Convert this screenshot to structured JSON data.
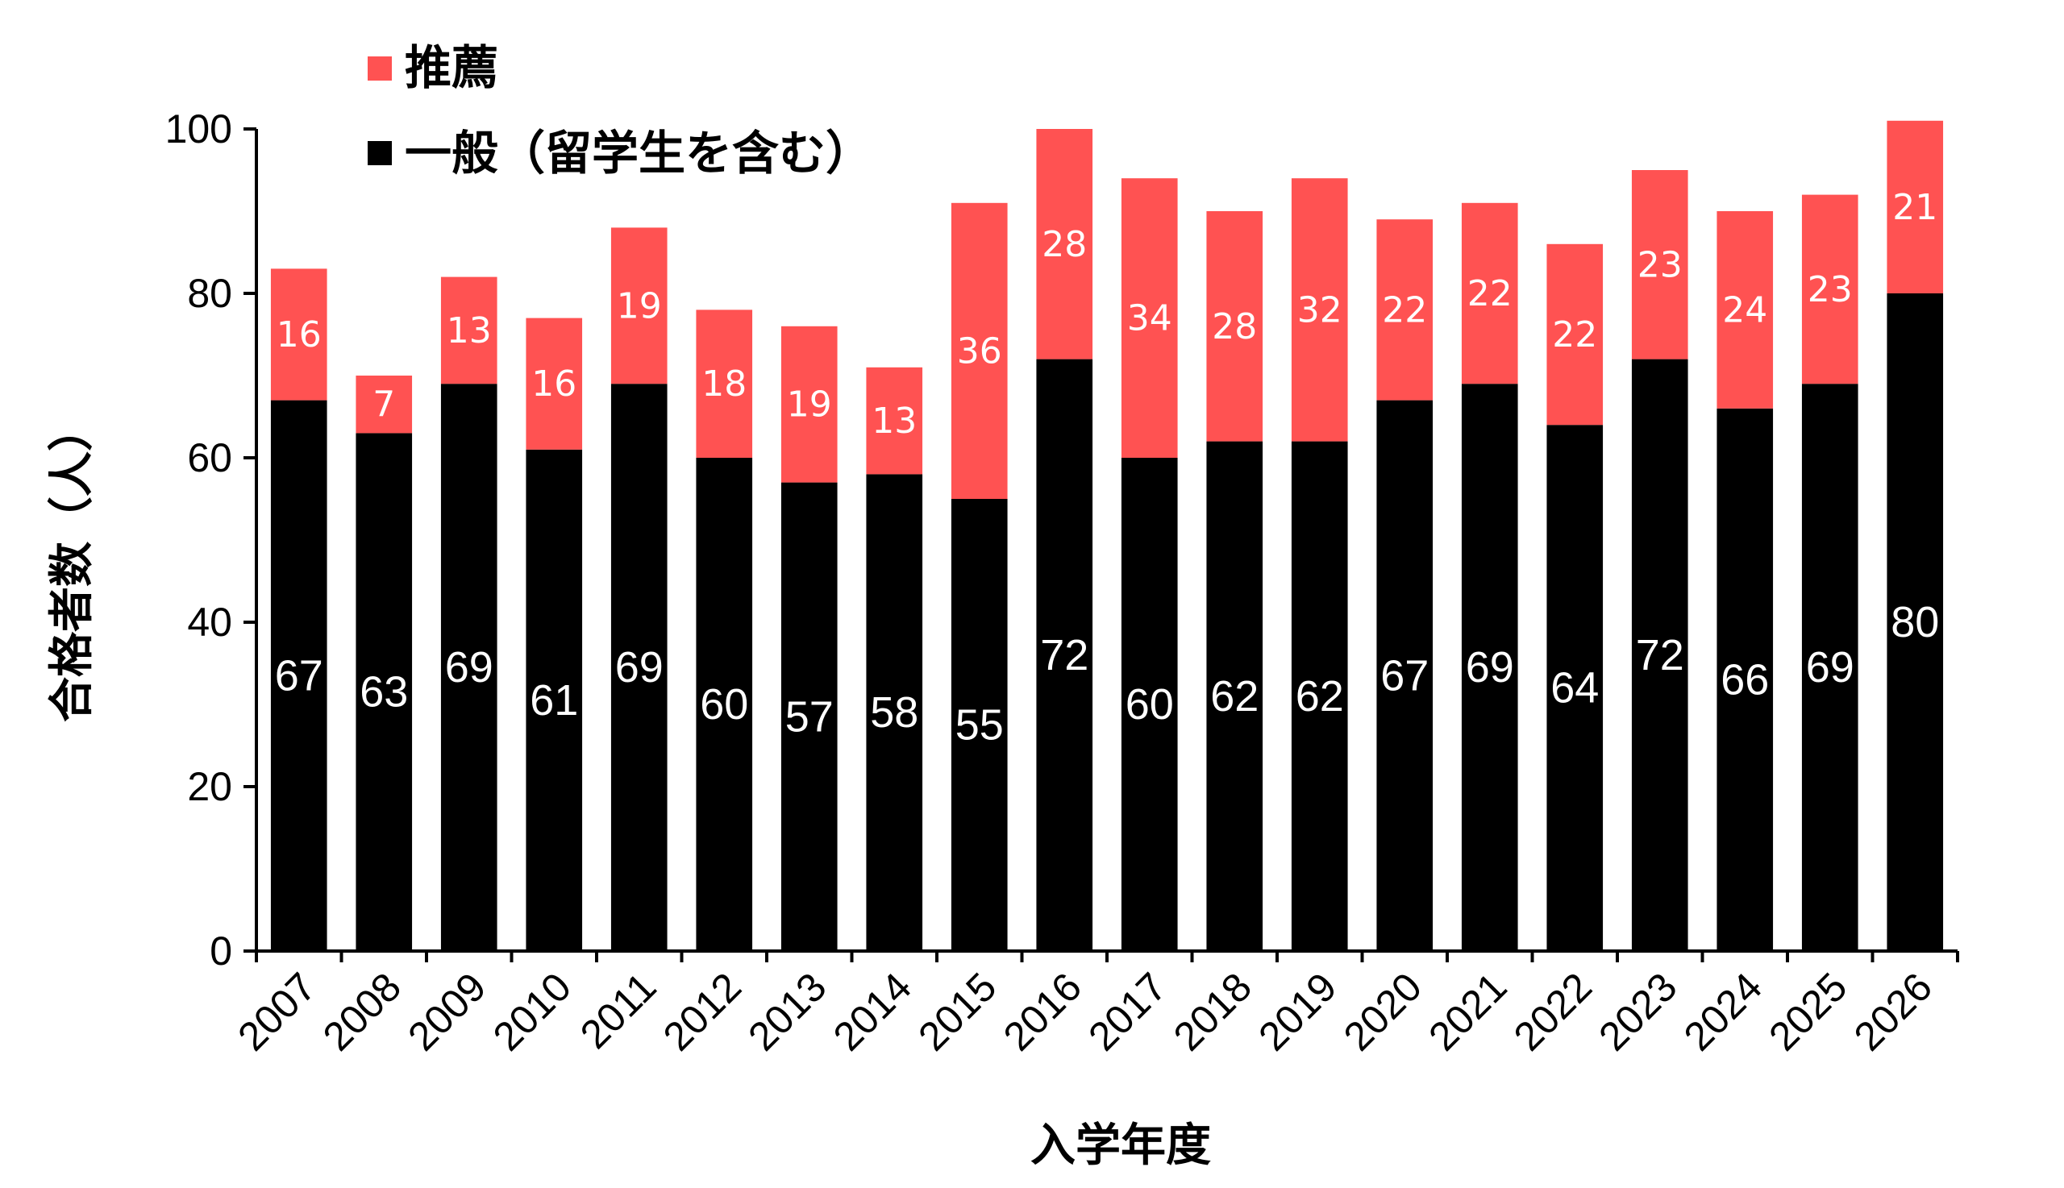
{
  "chart_data": {
    "type": "bar",
    "stacked": true,
    "title": "",
    "xlabel": "入学年度",
    "ylabel": "合格者数（人）",
    "ylim": [
      0,
      100
    ],
    "yticks": [
      0,
      20,
      40,
      60,
      80,
      100
    ],
    "categories": [
      "2007",
      "2008",
      "2009",
      "2010",
      "2011",
      "2012",
      "2013",
      "2014",
      "2015",
      "2016",
      "2017",
      "2018",
      "2019",
      "2020",
      "2021",
      "2022",
      "2023",
      "2024",
      "2025",
      "2026"
    ],
    "series": [
      {
        "name": "一般（留学生を含む）",
        "color": "#000000",
        "values": [
          67,
          63,
          69,
          61,
          69,
          60,
          57,
          58,
          55,
          72,
          60,
          62,
          62,
          67,
          69,
          64,
          72,
          66,
          69,
          80
        ]
      },
      {
        "name": "推薦",
        "color": "#ff5252",
        "values": [
          16,
          7,
          13,
          16,
          19,
          18,
          19,
          13,
          36,
          28,
          34,
          28,
          32,
          22,
          22,
          22,
          23,
          24,
          23,
          21
        ]
      }
    ],
    "legend": {
      "position": "top-left",
      "items": [
        {
          "label": "推薦",
          "color": "#ff5252"
        },
        {
          "label": "一般（留学生を含む）",
          "color": "#000000"
        }
      ]
    }
  }
}
